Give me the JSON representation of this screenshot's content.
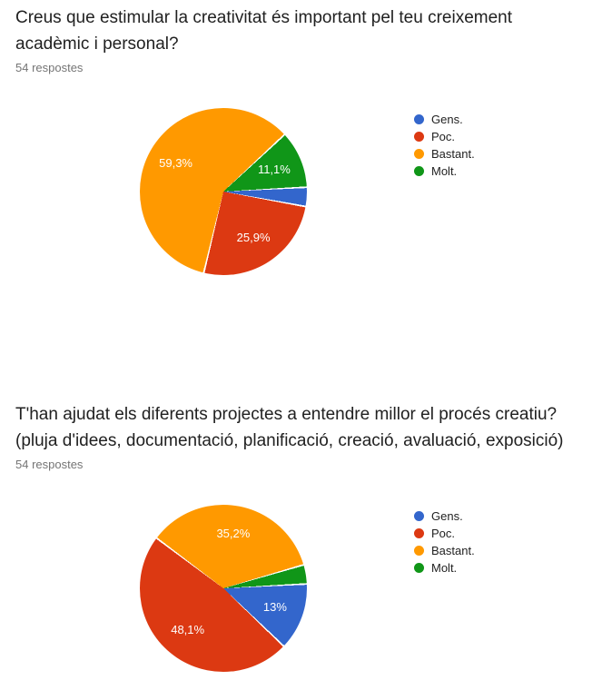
{
  "page": {
    "background_color": "#ffffff",
    "title_color": "#212121",
    "subtitle_color": "#757575"
  },
  "chart_data": [
    {
      "type": "pie",
      "title": "Creus que estimular la creativitat és important pel teu creixement acadèmic i personal?",
      "title_lines": [
        "Creus que estimular la creativitat és important pel teu creixement",
        "acadèmic i personal?"
      ],
      "responses_label": "54 respostes",
      "categories": [
        "Gens.",
        "Poc.",
        "Bastant.",
        "Molt."
      ],
      "values": [
        3.7,
        25.9,
        59.3,
        11.1
      ],
      "slice_labels": [
        "",
        "25,9%",
        "59,3%",
        "11,1%"
      ],
      "colors": [
        "#3366cc",
        "#dc3912",
        "#ff9900",
        "#109618"
      ],
      "legend_position": "right",
      "start_angle_deg": 87,
      "label_radius_pct": 33
    },
    {
      "type": "pie",
      "title": "T'han ajudat els diferents projectes a entendre millor el procés creatiu? (pluja d'idees, documentació, planificació, creació, avaluació, exposició)",
      "title_lines": [
        "T'han ajudat els diferents projectes a entendre millor el procés creatiu?",
        "(pluja d'idees, documentació, planificació, creació, avaluació, exposició)"
      ],
      "responses_label": "54 respostes",
      "categories": [
        "Gens.",
        "Poc.",
        "Bastant.",
        "Molt."
      ],
      "values": [
        13,
        48.1,
        35.2,
        3.7
      ],
      "slice_labels": [
        "13%",
        "48,1%",
        "35,2%",
        ""
      ],
      "colors": [
        "#3366cc",
        "#dc3912",
        "#ff9900",
        "#109618"
      ],
      "legend_position": "right",
      "start_angle_deg": 87,
      "label_radius_pct": 33
    }
  ]
}
